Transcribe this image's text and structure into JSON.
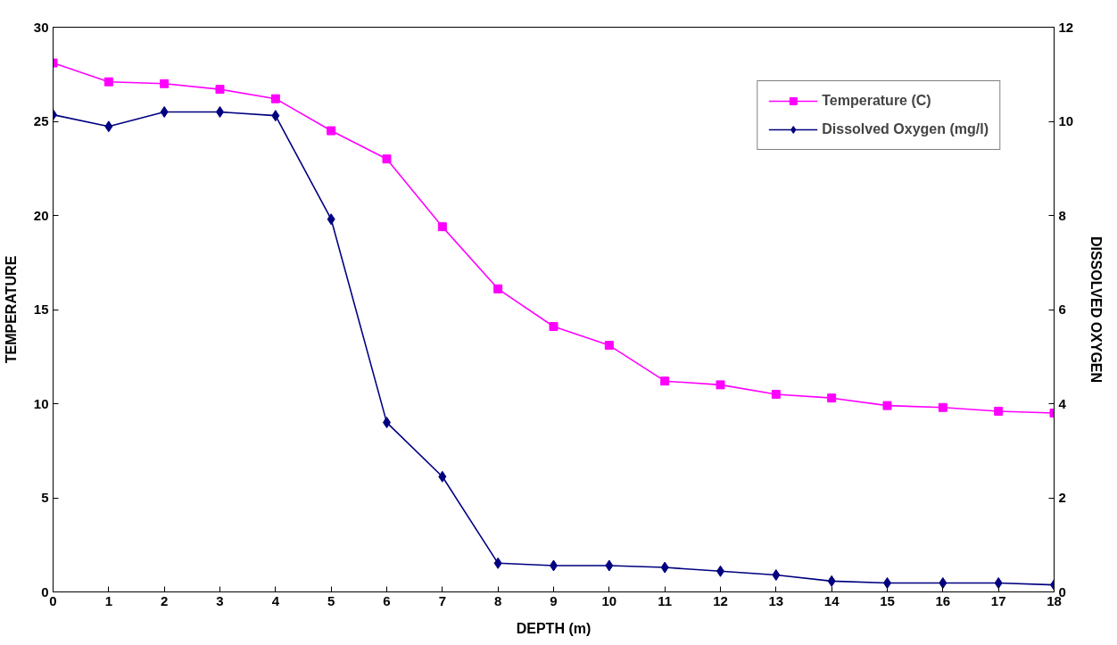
{
  "chart_data": {
    "type": "line",
    "xlabel": "DEPTH (m)",
    "ylabel": "TEMPERATURE",
    "y2label": "DISSOLVED OXYGEN",
    "x": [
      0,
      1,
      2,
      3,
      4,
      5,
      6,
      7,
      8,
      9,
      10,
      11,
      12,
      13,
      14,
      15,
      16,
      17,
      18
    ],
    "series": [
      {
        "name": "Temperature (C)",
        "color": "#ff00ff",
        "marker": "square",
        "values": [
          28.1,
          27.1,
          27.0,
          26.7,
          26.2,
          24.5,
          23.0,
          19.4,
          16.1,
          14.1,
          13.1,
          11.2,
          11.0,
          10.5,
          10.3,
          9.9,
          9.8,
          9.6,
          9.5
        ]
      },
      {
        "name": "Dissolved Oxygen (mg/l)",
        "color": "#000080",
        "marker": "diamond",
        "axis": "y2",
        "values": [
          10.14,
          9.89,
          10.2,
          10.2,
          10.12,
          7.92,
          3.6,
          2.45,
          0.61,
          0.56,
          0.56,
          0.52,
          0.44,
          0.36,
          0.23,
          0.19,
          0.19,
          0.19,
          0.15
        ]
      }
    ],
    "xlim": [
      0,
      18
    ],
    "xticks": [
      0,
      1,
      2,
      3,
      4,
      5,
      6,
      7,
      8,
      9,
      10,
      11,
      12,
      13,
      14,
      15,
      16,
      17,
      18
    ],
    "ylim": [
      0,
      30
    ],
    "yticks": [
      0,
      5,
      10,
      15,
      20,
      25,
      30
    ],
    "y2lim": [
      0,
      12
    ],
    "y2ticks": [
      0,
      2,
      4,
      6,
      8,
      10,
      12
    ],
    "grid": false,
    "legend": "top right",
    "line_style": "solid"
  }
}
